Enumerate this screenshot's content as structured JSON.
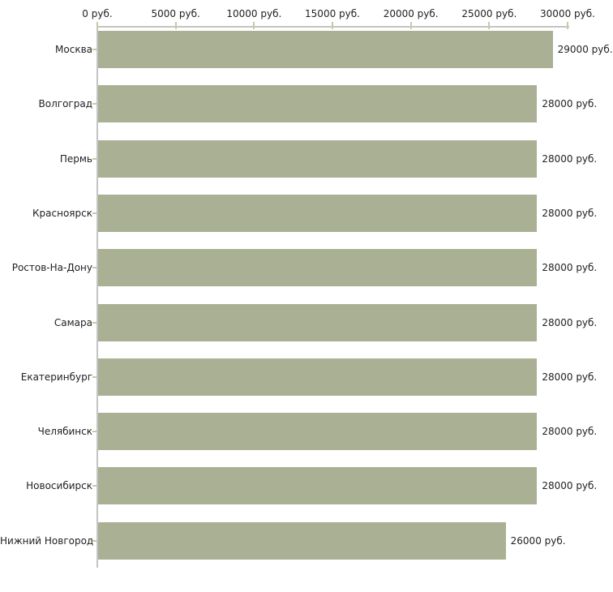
{
  "chart_data": {
    "type": "bar",
    "orientation": "horizontal",
    "title": "",
    "xlabel": "",
    "ylabel": "",
    "grid": false,
    "legend": null,
    "xlim": [
      0,
      30000
    ],
    "x_ticks": [
      0,
      5000,
      10000,
      15000,
      20000,
      25000,
      30000
    ],
    "x_tick_labels": [
      "0 руб.",
      "5000 руб.",
      "10000 руб.",
      "15000 руб.",
      "20000 руб.",
      "25000 руб.",
      "30000 руб."
    ],
    "categories": [
      "Москва",
      "Волгоград",
      "Пермь",
      "Красноярск",
      "Ростов-На-Дону",
      "Самара",
      "Екатеринбург",
      "Челябинск",
      "Новосибирск",
      "Нижний Новгород"
    ],
    "values": [
      29000,
      28000,
      28000,
      28000,
      28000,
      28000,
      28000,
      28000,
      28000,
      26000
    ],
    "value_labels": [
      "29000 руб.",
      "28000 руб.",
      "28000 руб.",
      "28000 руб.",
      "28000 руб.",
      "28000 руб.",
      "28000 руб.",
      "28000 руб.",
      "28000 руб.",
      "26000 руб."
    ],
    "colors": {
      "bar": "#a9b094",
      "axis_line": "#c4c4c4",
      "tick_mark": "#cbc8a6",
      "text": "#1f1f1f",
      "background": "#ffffff"
    }
  }
}
